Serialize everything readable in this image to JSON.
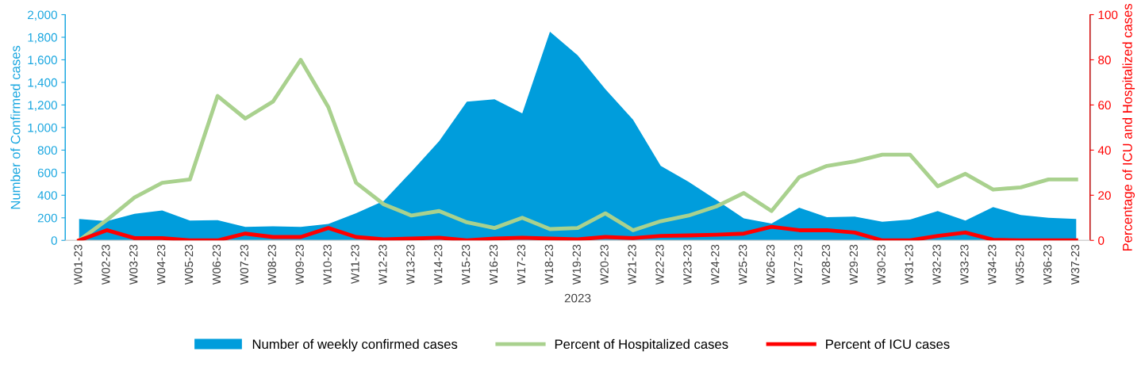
{
  "chart_data": {
    "type": "area",
    "xlabel": "2023",
    "ylabel": "Number of Confirmed cases",
    "y2label": "Percentage of ICU and Hospitalized cases",
    "categories": [
      "W01-23",
      "W02-23",
      "W03-23",
      "W04-23",
      "W05-23",
      "W06-23",
      "W07-23",
      "W08-23",
      "W09-23",
      "W10-23",
      "W11-23",
      "W12-23",
      "W13-23",
      "W14-23",
      "W15-23",
      "W16-23",
      "W17-23",
      "W18-23",
      "W19-23",
      "W20-23",
      "W21-23",
      "W22-23",
      "W23-23",
      "W24-23",
      "W25-23",
      "W26-23",
      "W27-23",
      "W28-23",
      "W29-23",
      "W30-23",
      "W31-23",
      "W32-23",
      "W33-23",
      "W34-23",
      "W35-23",
      "W36-23",
      "W37-23"
    ],
    "series": [
      {
        "name": "Number of weekly confirmed cases",
        "color": "#009ddc",
        "values": [
          190,
          170,
          235,
          265,
          175,
          180,
          120,
          125,
          120,
          145,
          240,
          350,
          610,
          880,
          1230,
          1250,
          1125,
          1850,
          1640,
          1340,
          1070,
          660,
          520,
          360,
          195,
          150,
          290,
          205,
          210,
          165,
          185,
          260,
          175,
          295,
          225,
          200,
          190
        ]
      },
      {
        "name": "Percent of Hospitalized cases",
        "type": "line",
        "axis": "y2",
        "color": "#a9d18e",
        "values": [
          0,
          9,
          19,
          25.5,
          27,
          64,
          54,
          61.5,
          80,
          59,
          25.5,
          16,
          11,
          13,
          8,
          5.5,
          10,
          5,
          5.5,
          12,
          4.5,
          8.5,
          11,
          15,
          21,
          13,
          28,
          33,
          35,
          38,
          38,
          24,
          29.5,
          22.5,
          23.5,
          27,
          27
        ]
      },
      {
        "name": "Percent of ICU cases",
        "type": "line",
        "axis": "y2",
        "color": "#ff0000",
        "values": [
          0,
          4.5,
          1,
          1,
          0,
          0,
          3,
          1.5,
          1.5,
          5.5,
          1.5,
          0.5,
          0.8,
          1.2,
          0,
          0.8,
          1.2,
          0.8,
          0.5,
          1.5,
          1,
          2,
          2.2,
          2.5,
          3,
          6,
          4.5,
          4.5,
          3.5,
          0,
          0,
          2,
          3.5,
          0.3,
          0,
          0,
          0
        ]
      }
    ],
    "ylim": [
      0,
      2000
    ],
    "yticks": [
      {
        "value": 0,
        "label": "0"
      },
      {
        "value": 200,
        "label": "200"
      },
      {
        "value": 400,
        "label": "400"
      },
      {
        "value": 600,
        "label": "600"
      },
      {
        "value": 800,
        "label": "800"
      },
      {
        "value": 1000,
        "label": "1,000"
      },
      {
        "value": 1200,
        "label": "1,200"
      },
      {
        "value": 1400,
        "label": "1,400"
      },
      {
        "value": 1600,
        "label": "1,600"
      },
      {
        "value": 1800,
        "label": "1,800"
      },
      {
        "value": 2000,
        "label": "2,000"
      }
    ],
    "y2lim": [
      0,
      100
    ],
    "y2ticks": [
      0,
      20,
      40,
      60,
      80,
      100
    ],
    "grid": false,
    "legend": "bottom",
    "marker": "none",
    "line_style": "solid"
  }
}
